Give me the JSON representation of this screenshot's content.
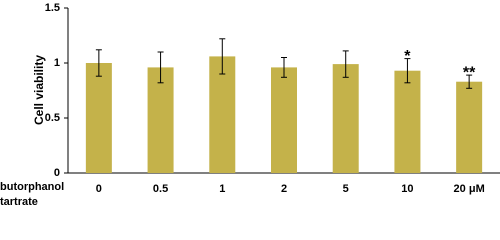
{
  "chart_data": {
    "type": "bar",
    "y_label": "Cell viability",
    "x_label": "butorphanol tartrate",
    "categories": [
      "0",
      "0.5",
      "1",
      "2",
      "5",
      "10",
      "20 μM"
    ],
    "values": [
      1.0,
      0.96,
      1.06,
      0.96,
      0.99,
      0.93,
      0.83
    ],
    "errors": [
      0.12,
      0.14,
      0.16,
      0.09,
      0.12,
      0.11,
      0.06
    ],
    "annotations": [
      null,
      null,
      null,
      null,
      null,
      "*",
      "**"
    ],
    "color": "#c4b24a",
    "ylim": [
      0,
      1.5
    ],
    "yticks": [
      0,
      0.5,
      1,
      1.5
    ],
    "grid": false
  }
}
